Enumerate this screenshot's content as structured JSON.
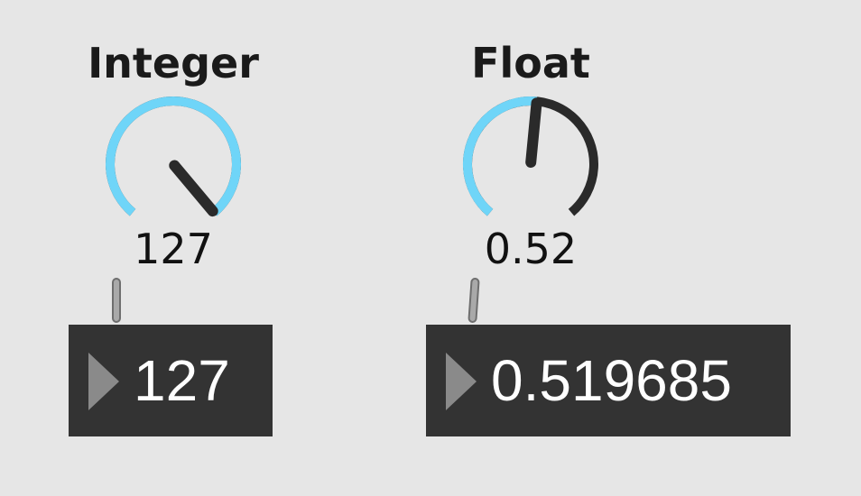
{
  "integer_dial": {
    "title": "Integer",
    "value_display": "127",
    "value": 127,
    "min": 0,
    "max": 127
  },
  "float_dial": {
    "title": "Float",
    "value_display": "0.52",
    "value": 0.519685,
    "min": 0,
    "max": 1
  },
  "integer_number_box": {
    "value": "127"
  },
  "float_number_box": {
    "value": "0.519685"
  },
  "colors": {
    "background": "#e6e6e6",
    "dial_active": "#6fd5f8",
    "dial_inactive": "#2a2a2a",
    "needle": "#2a2a2a",
    "number_box_bg": "#333333",
    "number_box_text": "#ffffff",
    "number_box_triangle": "#8a8a8a"
  }
}
